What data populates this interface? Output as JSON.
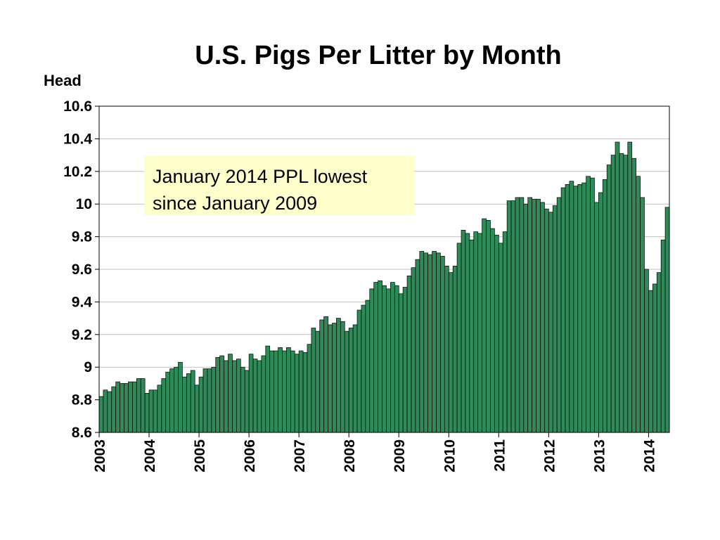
{
  "chart_data": {
    "type": "bar",
    "title": "U.S. Pigs Per Litter by Month",
    "ylabel": "Head",
    "xlabel": "",
    "ylim": [
      8.6,
      10.6
    ],
    "y_ticks": [
      "10.6",
      "10.4",
      "10.2",
      "10",
      "9.8",
      "9.6",
      "9.4",
      "9.2",
      "9",
      "8.8",
      "8.6"
    ],
    "x_ticks": [
      "2003",
      "2004",
      "2005",
      "2006",
      "2007",
      "2008",
      "2009",
      "2010",
      "2011",
      "2012",
      "2013",
      "2014"
    ],
    "grid": true,
    "bar_color": "#2e8b57",
    "start": "2003-01",
    "categories": [
      "2003-01",
      "2003-02",
      "2003-03",
      "2003-04",
      "2003-05",
      "2003-06",
      "2003-07",
      "2003-08",
      "2003-09",
      "2003-10",
      "2003-11",
      "2003-12",
      "2004-01",
      "2004-02",
      "2004-03",
      "2004-04",
      "2004-05",
      "2004-06",
      "2004-07",
      "2004-08",
      "2004-09",
      "2004-10",
      "2004-11",
      "2004-12",
      "2005-01",
      "2005-02",
      "2005-03",
      "2005-04",
      "2005-05",
      "2005-06",
      "2005-07",
      "2005-08",
      "2005-09",
      "2005-10",
      "2005-11",
      "2005-12",
      "2006-01",
      "2006-02",
      "2006-03",
      "2006-04",
      "2006-05",
      "2006-06",
      "2006-07",
      "2006-08",
      "2006-09",
      "2006-10",
      "2006-11",
      "2006-12",
      "2007-01",
      "2007-02",
      "2007-03",
      "2007-04",
      "2007-05",
      "2007-06",
      "2007-07",
      "2007-08",
      "2007-09",
      "2007-10",
      "2007-11",
      "2007-12",
      "2008-01",
      "2008-02",
      "2008-03",
      "2008-04",
      "2008-05",
      "2008-06",
      "2008-07",
      "2008-08",
      "2008-09",
      "2008-10",
      "2008-11",
      "2008-12",
      "2009-01",
      "2009-02",
      "2009-03",
      "2009-04",
      "2009-05",
      "2009-06",
      "2009-07",
      "2009-08",
      "2009-09",
      "2009-10",
      "2009-11",
      "2009-12",
      "2010-01",
      "2010-02",
      "2010-03",
      "2010-04",
      "2010-05",
      "2010-06",
      "2010-07",
      "2010-08",
      "2010-09",
      "2010-10",
      "2010-11",
      "2010-12",
      "2011-01",
      "2011-02",
      "2011-03",
      "2011-04",
      "2011-05",
      "2011-06",
      "2011-07",
      "2011-08",
      "2011-09",
      "2011-10",
      "2011-11",
      "2011-12",
      "2012-01",
      "2012-02",
      "2012-03",
      "2012-04",
      "2012-05",
      "2012-06",
      "2012-07",
      "2012-08",
      "2012-09",
      "2012-10",
      "2012-11",
      "2012-12",
      "2013-01",
      "2013-02",
      "2013-03",
      "2013-04",
      "2013-05",
      "2013-06",
      "2013-07",
      "2013-08",
      "2013-09",
      "2013-10",
      "2013-11",
      "2013-12",
      "2014-01",
      "2014-02",
      "2014-03",
      "2014-04",
      "2014-05"
    ],
    "values": [
      8.82,
      8.86,
      8.85,
      8.88,
      8.91,
      8.9,
      8.9,
      8.91,
      8.91,
      8.93,
      8.93,
      8.84,
      8.86,
      8.86,
      8.89,
      8.93,
      8.97,
      8.99,
      9.0,
      9.03,
      8.94,
      8.96,
      8.98,
      8.89,
      8.94,
      8.99,
      8.99,
      9.0,
      9.06,
      9.07,
      9.04,
      9.08,
      9.04,
      9.05,
      9.0,
      8.98,
      9.08,
      9.05,
      9.04,
      9.07,
      9.13,
      9.1,
      9.1,
      9.12,
      9.1,
      9.12,
      9.1,
      9.08,
      9.1,
      9.09,
      9.14,
      9.24,
      9.22,
      9.29,
      9.31,
      9.26,
      9.27,
      9.3,
      9.28,
      9.22,
      9.24,
      9.26,
      9.35,
      9.38,
      9.41,
      9.48,
      9.52,
      9.53,
      9.5,
      9.48,
      9.52,
      9.5,
      9.45,
      9.49,
      9.56,
      9.61,
      9.66,
      9.71,
      9.7,
      9.69,
      9.71,
      9.7,
      9.68,
      9.62,
      9.58,
      9.62,
      9.76,
      9.84,
      9.82,
      9.78,
      9.83,
      9.82,
      9.91,
      9.9,
      9.85,
      9.81,
      9.76,
      9.83,
      10.02,
      10.02,
      10.04,
      10.04,
      10.0,
      10.04,
      10.03,
      10.03,
      10.01,
      9.97,
      9.95,
      9.99,
      10.04,
      10.1,
      10.12,
      10.14,
      10.11,
      10.12,
      10.13,
      10.17,
      10.16,
      10.01,
      10.07,
      10.15,
      10.24,
      10.3,
      10.38,
      10.31,
      10.3,
      10.38,
      10.28,
      10.17,
      10.04,
      9.6,
      9.47,
      9.51,
      9.58,
      9.78,
      9.98
    ]
  },
  "annotation": {
    "line1": "January 2014 PPL lowest",
    "line2": "since January 2009"
  },
  "colors": {
    "bar_fill": "#2e8b57",
    "bar_stroke": "#000000",
    "annotation_bg": "#ffffcc",
    "grid": "#c0c0c0"
  }
}
